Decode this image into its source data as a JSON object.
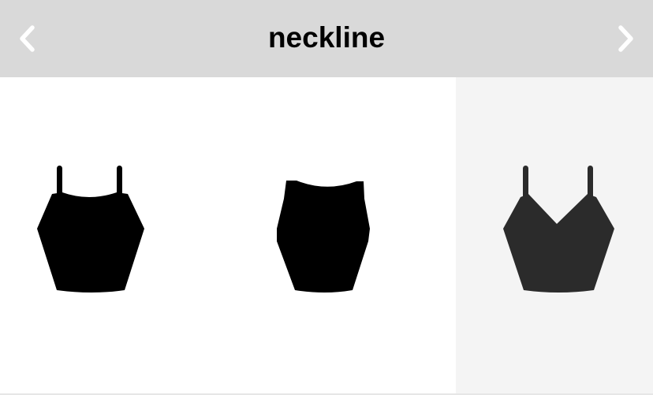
{
  "header": {
    "title": "neckline",
    "prev_icon": "chevron-left-icon",
    "next_icon": "chevron-right-icon",
    "background": "#d9d9d9",
    "icon_color": "#ffffff"
  },
  "neckline_options": [
    {
      "icon": "camisole-straight-neckline-icon",
      "selected": false,
      "color": "#000000"
    },
    {
      "icon": "tank-scoop-neckline-icon",
      "selected": false,
      "color": "#000000"
    },
    {
      "icon": "camisole-v-neckline-icon",
      "selected": true,
      "color": "#2b2b2b"
    }
  ],
  "colors": {
    "selected_background": "#f4f4f4",
    "unselected_background": "#ffffff"
  }
}
